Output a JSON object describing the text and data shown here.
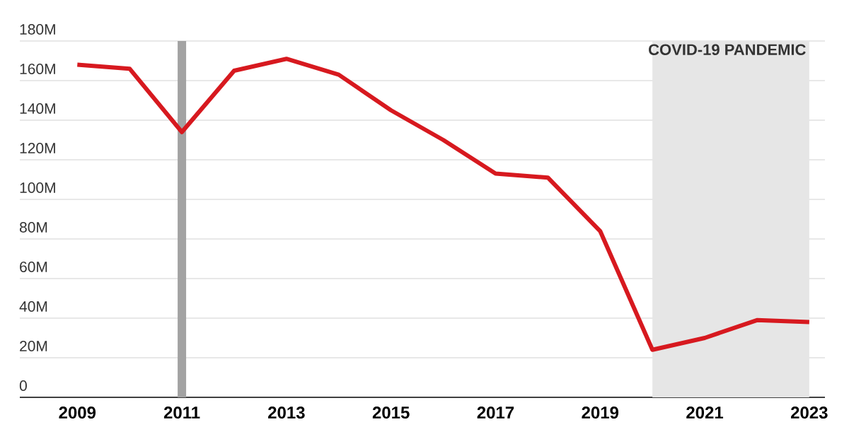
{
  "chart_data": {
    "type": "line",
    "x": [
      2009,
      2010,
      2011,
      2012,
      2013,
      2014,
      2015,
      2016,
      2017,
      2018,
      2019,
      2020,
      2021,
      2022,
      2023
    ],
    "values": [
      168,
      166,
      134,
      165,
      171,
      163,
      145,
      130,
      113,
      111,
      84,
      24,
      30,
      39,
      38
    ],
    "color": "#d7191f",
    "xlim": [
      2007.9,
      2023.3
    ],
    "xticks": [
      2009,
      2011,
      2013,
      2015,
      2017,
      2019,
      2021,
      2023
    ],
    "ylim": [
      0,
      180
    ],
    "yticks": [
      0,
      {
        "value": 20,
        "label": "20M"
      },
      {
        "value": 40,
        "label": "40M"
      },
      {
        "value": 60,
        "label": "60M"
      },
      {
        "value": 80,
        "label": "80M"
      },
      {
        "value": 100,
        "label": "100M"
      },
      {
        "value": 120,
        "label": "120M"
      },
      {
        "value": 140,
        "label": "140M"
      },
      {
        "value": 160,
        "label": "160M"
      },
      {
        "value": 180,
        "label": "180M"
      }
    ],
    "grid": "y",
    "ref_lines": [
      {
        "axis": "x",
        "value": 2011,
        "color": "#a3a3a3"
      }
    ],
    "bands": [
      {
        "axis": "x",
        "from": 2020,
        "to": 2023,
        "label": "COVID-19 PANDEMIC",
        "color": "#e6e6e6"
      }
    ]
  }
}
